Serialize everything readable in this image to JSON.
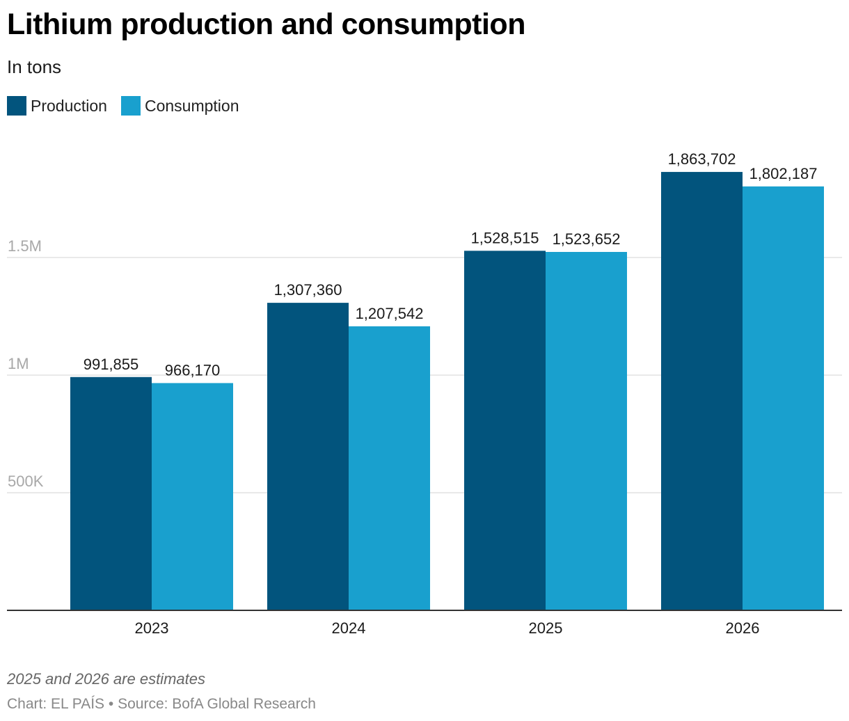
{
  "chart_data": {
    "type": "bar",
    "title": "Lithium production and consumption",
    "subtitle": "In tons",
    "categories": [
      "2023",
      "2024",
      "2025",
      "2026"
    ],
    "series": [
      {
        "name": "Production",
        "color": "#02547d",
        "values": [
          991855,
          1307360,
          1528515,
          1863702
        ],
        "labels": [
          "991,855",
          "1,307,360",
          "1,528,515",
          "1,863,702"
        ]
      },
      {
        "name": "Consumption",
        "color": "#19a0ce",
        "values": [
          966170,
          1207542,
          1523652,
          1802187
        ],
        "labels": [
          "966,170",
          "1,207,542",
          "1,523,652",
          "1,802,187"
        ]
      }
    ],
    "y_ticks": [
      {
        "value": 500000,
        "label": "500K"
      },
      {
        "value": 1000000,
        "label": "1M"
      },
      {
        "value": 1500000,
        "label": "1.5M"
      }
    ],
    "ylim": [
      0,
      1920000
    ],
    "grid": true,
    "legend_position": "top-left"
  },
  "footer": {
    "note": "2025 and 2026 are estimates",
    "credit": "Chart: EL PAÍS • Source: BofA Global Research"
  }
}
